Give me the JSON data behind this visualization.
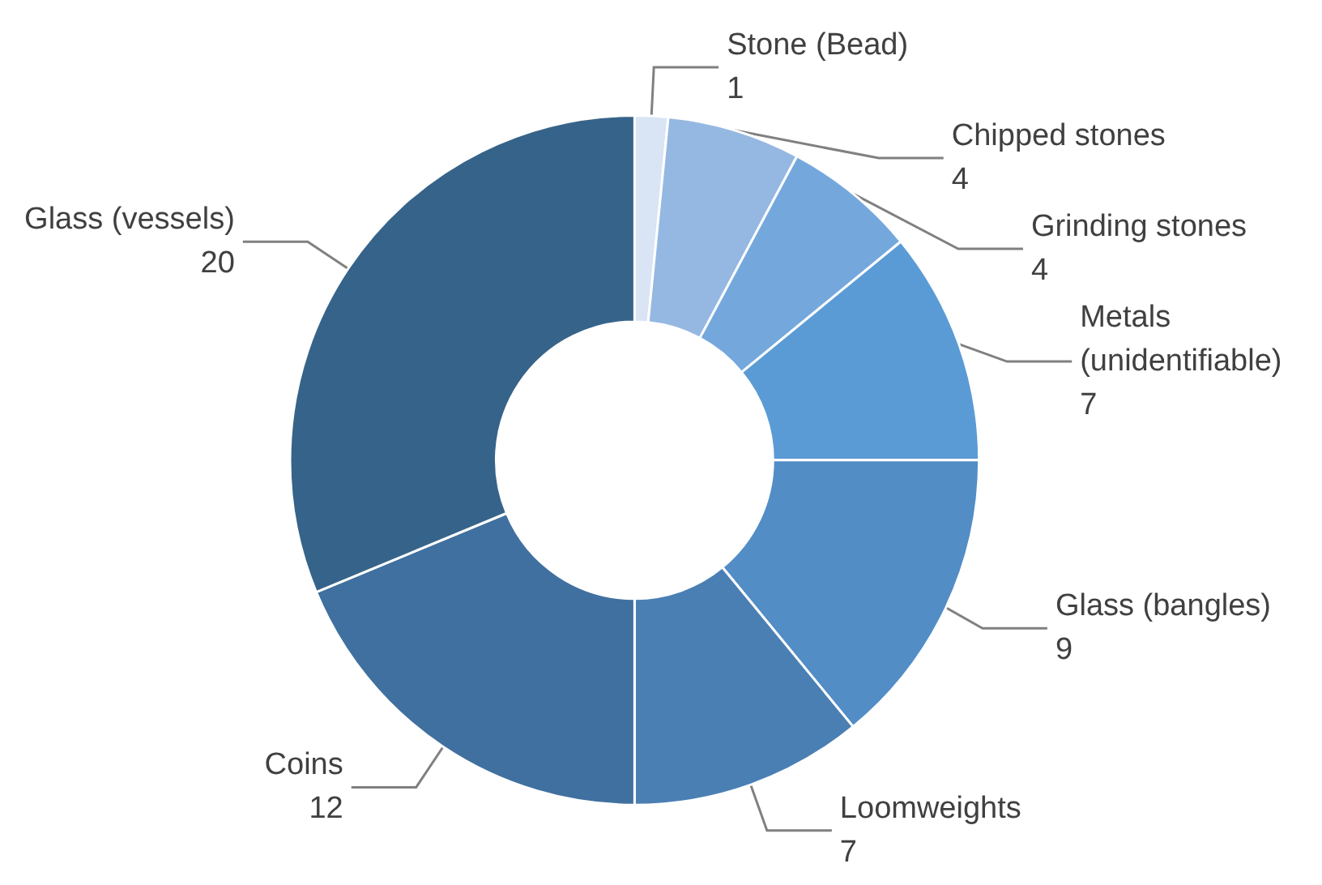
{
  "chart_data": {
    "type": "donut",
    "categories": [
      "Stone (Bead)",
      "Chipped stones",
      "Grinding stones",
      "Metals (unidentifiable)",
      "Glass (bangles)",
      "Loomweights",
      "Coins",
      "Glass (vessels)"
    ],
    "values": [
      1,
      4,
      4,
      7,
      9,
      7,
      12,
      20
    ],
    "colors": [
      "#d9e4f4",
      "#95b8e2",
      "#74a8dd",
      "#5b9bd5",
      "#528dc6",
      "#4a7fb4",
      "#40709f",
      "#366389"
    ],
    "data_labels": true,
    "legend": false
  }
}
